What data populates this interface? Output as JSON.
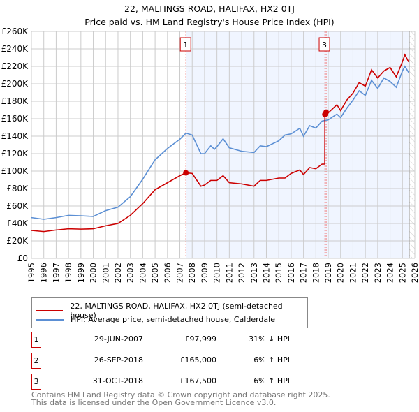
{
  "title": [
    "22, MALTINGS ROAD, HALIFAX, HX2 0TJ",
    "Price paid vs. HM Land Registry's House Price Index (HPI)"
  ],
  "chart_data": {
    "type": "line",
    "title": "22, MALTINGS ROAD, HALIFAX, HX2 0TJ — Price paid vs. HM Land Registry's House Price Index (HPI)",
    "xlim": [
      1995,
      2026
    ],
    "ylim": [
      0,
      260000
    ],
    "x_ticks": [
      "1995",
      "1996",
      "1997",
      "1998",
      "1999",
      "2000",
      "2001",
      "2002",
      "2003",
      "2004",
      "2005",
      "2006",
      "2007",
      "2008",
      "2009",
      "2010",
      "2011",
      "2012",
      "2013",
      "2014",
      "2015",
      "2016",
      "2017",
      "2018",
      "2019",
      "2020",
      "2021",
      "2022",
      "2023",
      "2024",
      "2025",
      "2026"
    ],
    "y_ticks": [
      {
        "v": 0,
        "label": "£0"
      },
      {
        "v": 20000,
        "label": "£20K"
      },
      {
        "v": 40000,
        "label": "£40K"
      },
      {
        "v": 60000,
        "label": "£60K"
      },
      {
        "v": 80000,
        "label": "£80K"
      },
      {
        "v": 100000,
        "label": "£100K"
      },
      {
        "v": 120000,
        "label": "£120K"
      },
      {
        "v": 140000,
        "label": "£140K"
      },
      {
        "v": 160000,
        "label": "£160K"
      },
      {
        "v": 180000,
        "label": "£180K"
      },
      {
        "v": 200000,
        "label": "£200K"
      },
      {
        "v": 220000,
        "label": "£220K"
      },
      {
        "v": 240000,
        "label": "£240K"
      },
      {
        "v": 260000,
        "label": "£260K"
      }
    ],
    "grid": true,
    "shaded_from": 2007.49,
    "hatched_from": 2025.55,
    "series": [
      {
        "name": "22, MALTINGS ROAD, HALIFAX, HX2 0TJ (semi-detached house)",
        "color": "#cc0000",
        "points": [
          [
            1995,
            32000
          ],
          [
            1996,
            30700
          ],
          [
            1997,
            32500
          ],
          [
            1998,
            33900
          ],
          [
            1999,
            33500
          ],
          [
            2000,
            33900
          ],
          [
            2001,
            37300
          ],
          [
            2002,
            40000
          ],
          [
            2003,
            49300
          ],
          [
            2004,
            62700
          ],
          [
            2005,
            78700
          ],
          [
            2006,
            86700
          ],
          [
            2007,
            94700
          ],
          [
            2007.49,
            97999
          ],
          [
            2008,
            97300
          ],
          [
            2008.7,
            82700
          ],
          [
            2009,
            84000
          ],
          [
            2009.5,
            89300
          ],
          [
            2010,
            89300
          ],
          [
            2010.5,
            94700
          ],
          [
            2011,
            86700
          ],
          [
            2012,
            85300
          ],
          [
            2013,
            82700
          ],
          [
            2013.5,
            89300
          ],
          [
            2014,
            89300
          ],
          [
            2015,
            92000
          ],
          [
            2015.5,
            92000
          ],
          [
            2016,
            97300
          ],
          [
            2016.7,
            101300
          ],
          [
            2017,
            96000
          ],
          [
            2017.5,
            104000
          ],
          [
            2018,
            102700
          ],
          [
            2018.5,
            108000
          ],
          [
            2018.72,
            108000
          ],
          [
            2018.73,
            165000
          ],
          [
            2018.83,
            167500
          ],
          [
            2019,
            166700
          ],
          [
            2019.7,
            176000
          ],
          [
            2020,
            169300
          ],
          [
            2020.5,
            181300
          ],
          [
            2021,
            189300
          ],
          [
            2021.5,
            201300
          ],
          [
            2022,
            197300
          ],
          [
            2022.5,
            216000
          ],
          [
            2023,
            206700
          ],
          [
            2023.5,
            214700
          ],
          [
            2024,
            218700
          ],
          [
            2024.5,
            208000
          ],
          [
            2025,
            225300
          ],
          [
            2025.2,
            233300
          ],
          [
            2025.5,
            225000
          ]
        ]
      },
      {
        "name": "HPI: Average price, semi-detached house, Calderdale",
        "color": "#5b8fd4",
        "points": [
          [
            1995,
            46700
          ],
          [
            1996,
            44800
          ],
          [
            1997,
            46700
          ],
          [
            1998,
            49300
          ],
          [
            1999,
            48800
          ],
          [
            2000,
            48000
          ],
          [
            2001,
            54700
          ],
          [
            2002,
            58700
          ],
          [
            2003,
            70700
          ],
          [
            2004,
            90700
          ],
          [
            2005,
            113000
          ],
          [
            2006,
            125900
          ],
          [
            2007,
            136500
          ],
          [
            2007.5,
            143500
          ],
          [
            2008,
            141300
          ],
          [
            2008.7,
            120000
          ],
          [
            2009,
            120000
          ],
          [
            2009.5,
            129000
          ],
          [
            2009.8,
            125000
          ],
          [
            2010,
            128000
          ],
          [
            2010.5,
            137000
          ],
          [
            2011,
            126700
          ],
          [
            2012,
            122700
          ],
          [
            2013,
            121300
          ],
          [
            2013.5,
            128900
          ],
          [
            2014,
            128000
          ],
          [
            2015,
            134700
          ],
          [
            2015.5,
            141300
          ],
          [
            2016,
            142700
          ],
          [
            2016.7,
            149000
          ],
          [
            2017,
            140000
          ],
          [
            2017.5,
            152000
          ],
          [
            2018,
            149300
          ],
          [
            2018.5,
            157300
          ],
          [
            2019,
            158700
          ],
          [
            2019.7,
            165300
          ],
          [
            2020,
            161300
          ],
          [
            2020.5,
            172000
          ],
          [
            2021,
            181300
          ],
          [
            2021.5,
            192000
          ],
          [
            2022,
            186700
          ],
          [
            2022.5,
            204000
          ],
          [
            2023,
            194700
          ],
          [
            2023.5,
            206700
          ],
          [
            2024,
            202700
          ],
          [
            2024.5,
            196000
          ],
          [
            2025,
            214700
          ],
          [
            2025.2,
            220000
          ],
          [
            2025.5,
            213000
          ]
        ]
      }
    ],
    "sales": [
      {
        "id": "1",
        "x": 2007.49,
        "y": 97999
      },
      {
        "id": "2",
        "x": 2018.73,
        "y": 165000
      },
      {
        "id": "3",
        "x": 2018.83,
        "y": 167500
      }
    ],
    "legend_placement": "below"
  },
  "legend": [
    "22, MALTINGS ROAD, HALIFAX, HX2 0TJ (semi-detached house)",
    "HPI: Average price, semi-detached house, Calderdale"
  ],
  "transactions": [
    {
      "num": "1",
      "date": "29-JUN-2007",
      "price": "£97,999",
      "hpi": "31% ↓ HPI"
    },
    {
      "num": "2",
      "date": "26-SEP-2018",
      "price": "£165,000",
      "hpi": "6% ↑ HPI"
    },
    {
      "num": "3",
      "date": "31-OCT-2018",
      "price": "£167,500",
      "hpi": "6% ↑ HPI"
    }
  ],
  "footer": [
    "Contains HM Land Registry data © Crown copyright and database right 2025.",
    "This data is licensed under the Open Government Licence v3.0."
  ]
}
